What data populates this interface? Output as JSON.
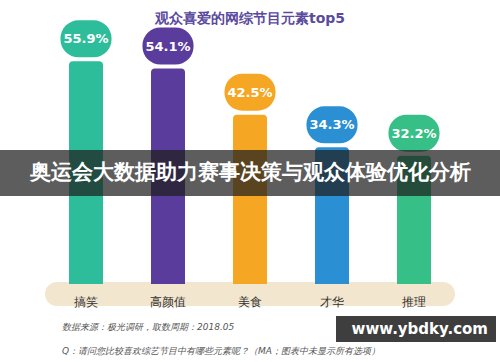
{
  "chart_data": {
    "type": "bar",
    "title": "观众喜爱的网综节目元素top5",
    "categories": [
      "搞笑",
      "高颜值",
      "美食",
      "才华",
      "推理"
    ],
    "values": [
      55.9,
      54.1,
      42.5,
      34.3,
      32.2
    ],
    "value_labels": [
      "55.9%",
      "54.1%",
      "42.5%",
      "34.3%",
      "32.2%"
    ],
    "colors": [
      "#2dbd9b",
      "#5a3c9c",
      "#f5a623",
      "#2b8fd4",
      "#36bf86"
    ],
    "ylim": [
      0,
      60
    ],
    "data_labels": true,
    "tick_labels": "x",
    "grid": false,
    "annotations": [
      "奥运会大数据助力赛事决策与观众体验优化分析",
      "www.ybdky.com",
      "数据来源：极光调研，取数周期：2018.05",
      "Q：请问您比较喜欢综艺节目中有哪些元素呢？（MA；图表中未显示所有选项）"
    ]
  }
}
